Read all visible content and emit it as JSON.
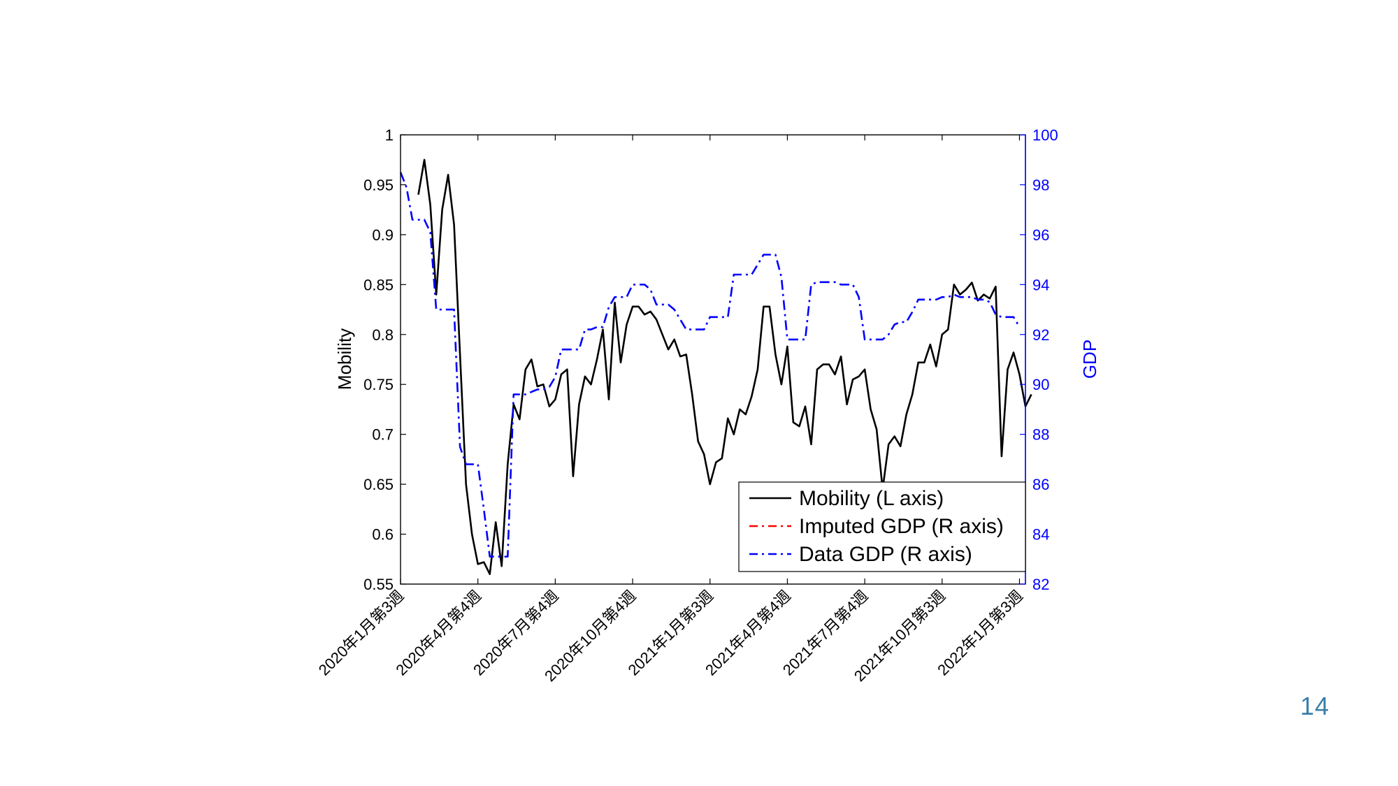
{
  "page": {
    "number": "14"
  },
  "chart_data": {
    "type": "line",
    "y_left": {
      "label": "Mobility",
      "lim": [
        0.55,
        1
      ],
      "ticks": [
        "0.55",
        "0.6",
        "0.65",
        "0.7",
        "0.75",
        "0.8",
        "0.85",
        "0.9",
        "0.95",
        "1"
      ]
    },
    "y_right": {
      "label": "GDP",
      "lim": [
        82,
        100
      ],
      "ticks": [
        "82",
        "84",
        "86",
        "88",
        "90",
        "92",
        "94",
        "96",
        "98",
        "100"
      ],
      "color": "#0000ff"
    },
    "x_ticks": [
      {
        "i": 0,
        "label": "2020年1月第3週"
      },
      {
        "i": 13,
        "label": "2020年4月第4週"
      },
      {
        "i": 26,
        "label": "2020年7月第4週"
      },
      {
        "i": 39,
        "label": "2020年10月第4週"
      },
      {
        "i": 52,
        "label": "2021年1月第3週"
      },
      {
        "i": 65,
        "label": "2021年4月第4週"
      },
      {
        "i": 78,
        "label": "2021年7月第4週"
      },
      {
        "i": 91,
        "label": "2021年10月第3週"
      },
      {
        "i": 104,
        "label": "2022年1月第3週"
      }
    ],
    "x_count": 106,
    "legend": {
      "placement": "bottom-right",
      "entries": [
        {
          "label": "Mobility (L axis)",
          "color": "#000000",
          "style": "solid"
        },
        {
          "label": "Imputed GDP (R axis)",
          "color": "#ff0000",
          "style": "dashdot"
        },
        {
          "label": "Data GDP (R axis)",
          "color": "#0000ff",
          "style": "dashdot"
        }
      ]
    },
    "series": [
      {
        "name": "Mobility (L axis)",
        "axis": "left",
        "color": "#000000",
        "style": "solid",
        "start": 3,
        "values": [
          0.94,
          0.975,
          0.93,
          0.84,
          0.925,
          0.96,
          0.91,
          0.78,
          0.65,
          0.6,
          0.57,
          0.572,
          0.56,
          0.612,
          0.568,
          0.67,
          0.73,
          0.715,
          0.765,
          0.775,
          0.748,
          0.75,
          0.728,
          0.735,
          0.76,
          0.765,
          0.658,
          0.73,
          0.758,
          0.75,
          0.775,
          0.805,
          0.735,
          0.832,
          0.772,
          0.81,
          0.828,
          0.828,
          0.82,
          0.823,
          0.815,
          0.8,
          0.785,
          0.795,
          0.778,
          0.78,
          0.74,
          0.693,
          0.68,
          0.65,
          0.672,
          0.676,
          0.716,
          0.7,
          0.725,
          0.72,
          0.738,
          0.765,
          0.828,
          0.828,
          0.78,
          0.75,
          0.788,
          0.712,
          0.708,
          0.728,
          0.69,
          0.765,
          0.77,
          0.77,
          0.76,
          0.778,
          0.73,
          0.755,
          0.758,
          0.765,
          0.725,
          0.705,
          0.645,
          0.69,
          0.698,
          0.688,
          0.72,
          0.74,
          0.772,
          0.772,
          0.79,
          0.768,
          0.8,
          0.805,
          0.85,
          0.84,
          0.845,
          0.852,
          0.834,
          0.84,
          0.836,
          0.848,
          0.678,
          0.765,
          0.782,
          0.76,
          0.728,
          0.74
        ]
      },
      {
        "name": "Imputed GDP (R axis)",
        "axis": "right",
        "color": "#ff0000",
        "style": "dashdot",
        "start": 0,
        "values": []
      },
      {
        "name": "Data GDP (R axis)",
        "axis": "right",
        "color": "#0000ff",
        "style": "dashdot",
        "start": 0,
        "values": [
          98.5,
          97.9,
          96.6,
          96.6,
          96.6,
          96.1,
          93.0,
          93.0,
          93.0,
          93.0,
          87.5,
          86.8,
          86.8,
          86.8,
          85.0,
          83.1,
          83.1,
          83.1,
          83.1,
          89.6,
          89.6,
          89.6,
          89.7,
          89.8,
          89.8,
          89.9,
          90.3,
          91.4,
          91.4,
          91.4,
          91.4,
          92.2,
          92.2,
          92.3,
          92.3,
          93.1,
          93.5,
          93.5,
          93.5,
          94.0,
          94.0,
          94.0,
          93.8,
          93.2,
          93.2,
          93.2,
          93.0,
          92.6,
          92.2,
          92.2,
          92.2,
          92.2,
          92.7,
          92.7,
          92.7,
          92.7,
          94.4,
          94.4,
          94.4,
          94.4,
          94.8,
          95.2,
          95.2,
          95.2,
          94.3,
          91.8,
          91.8,
          91.8,
          91.8,
          94.0,
          94.1,
          94.1,
          94.1,
          94.1,
          94.0,
          94.0,
          94.0,
          93.5,
          91.8,
          91.8,
          91.8,
          91.8,
          92.0,
          92.4,
          92.5,
          92.5,
          92.9,
          93.4,
          93.4,
          93.4,
          93.4,
          93.5,
          93.5,
          93.6,
          93.5,
          93.5,
          93.5,
          93.4,
          93.4,
          93.3,
          92.8,
          92.7,
          92.7,
          92.7,
          92.3
        ]
      }
    ]
  }
}
